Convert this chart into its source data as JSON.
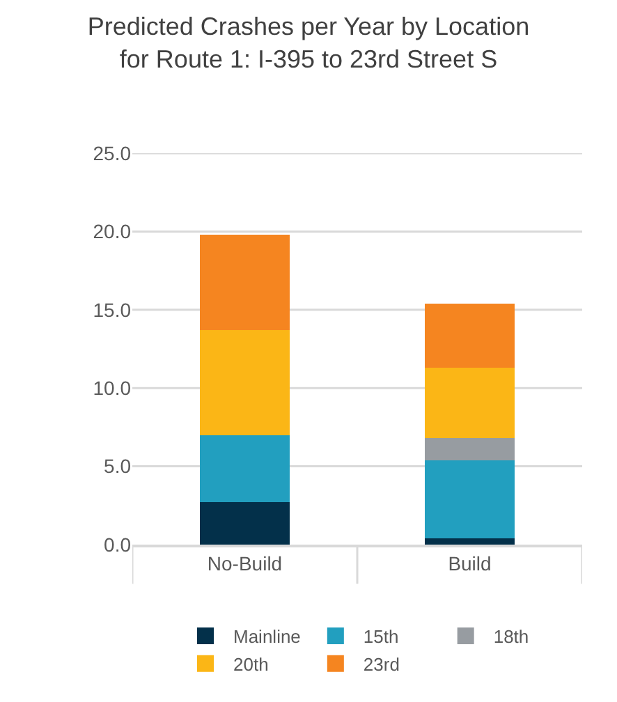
{
  "chart_data": {
    "type": "bar",
    "stacked": true,
    "title": "Predicted Crashes per Year by Location\nfor Route 1: I-395 to 23rd Street S",
    "categories": [
      "No-Build",
      "Build"
    ],
    "series": [
      {
        "name": "Mainline",
        "color": "#03304a",
        "values": [
          2.7,
          0.4
        ]
      },
      {
        "name": "15th",
        "color": "#229fbf",
        "values": [
          4.3,
          5.0
        ]
      },
      {
        "name": "18th",
        "color": "#979ca1",
        "values": [
          0,
          1.4
        ]
      },
      {
        "name": "20th",
        "color": "#fbb616",
        "values": [
          6.7,
          4.5
        ]
      },
      {
        "name": "23rd",
        "color": "#f58520",
        "values": [
          6.1,
          4.1
        ]
      }
    ],
    "ylim": [
      0,
      25
    ],
    "yticks": [
      {
        "value": 0,
        "label": "0.0"
      },
      {
        "value": 5,
        "label": "5.0"
      },
      {
        "value": 10,
        "label": "10.0"
      },
      {
        "value": 15,
        "label": "15.0"
      },
      {
        "value": 20,
        "label": "20.0"
      },
      {
        "value": 25,
        "label": "25.0"
      }
    ],
    "grid": "y",
    "legend": "bottom"
  }
}
